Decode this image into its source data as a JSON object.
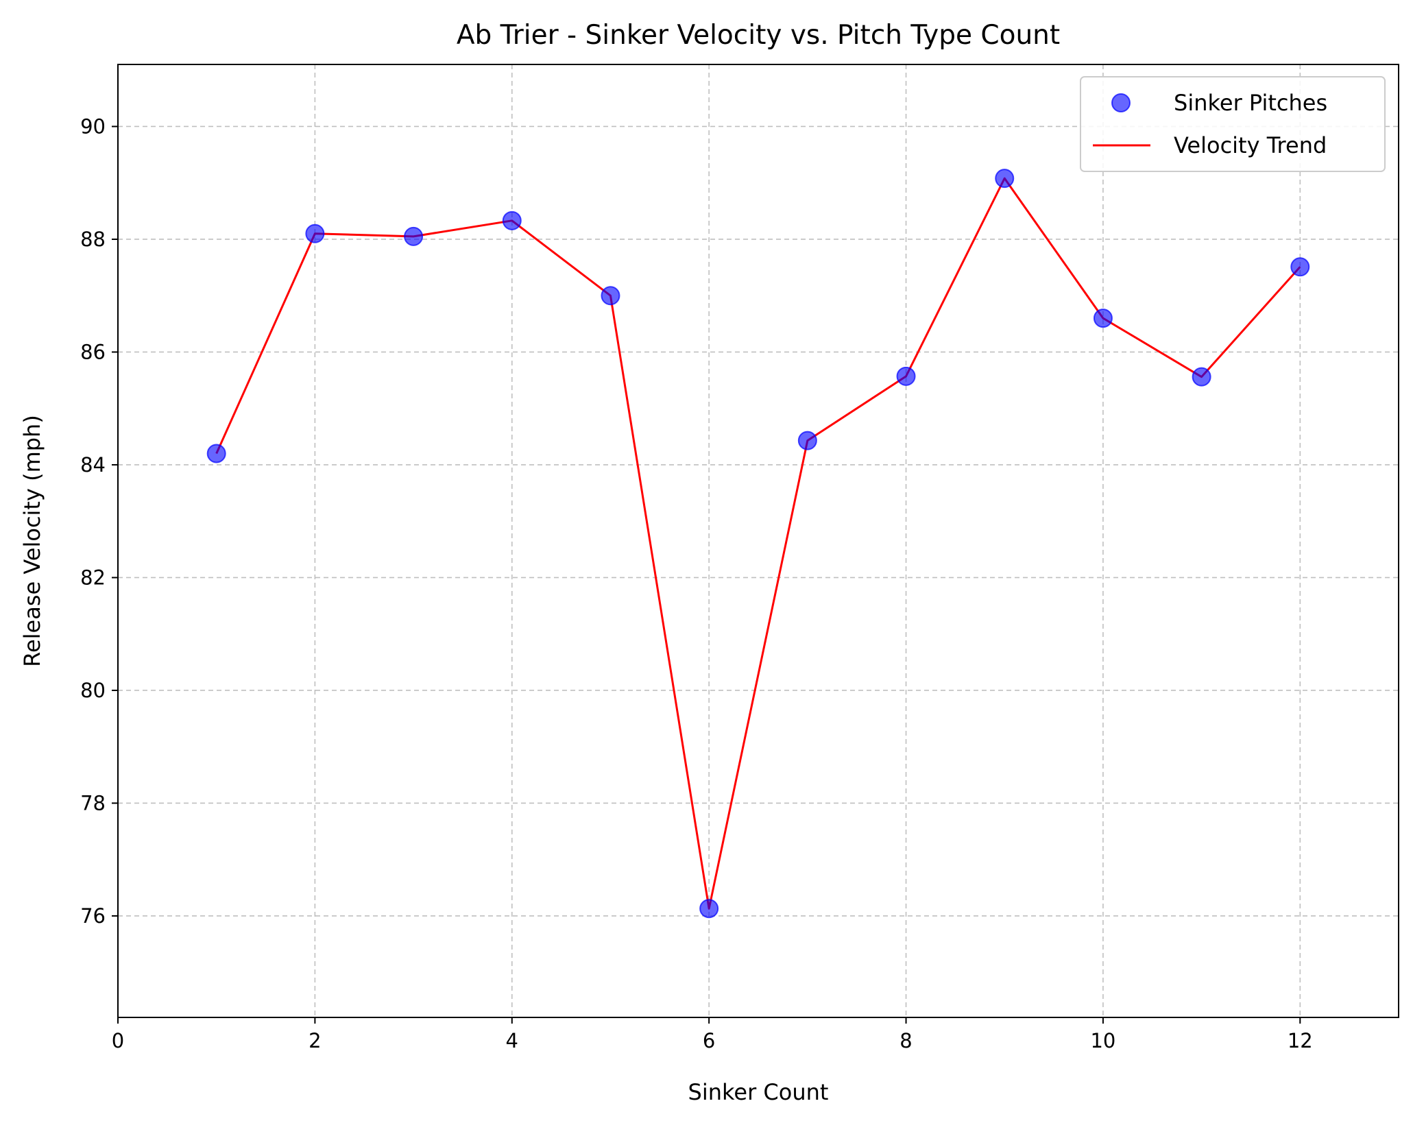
{
  "chart_data": {
    "type": "scatter",
    "title": "Ab Trier - Sinker Velocity vs. Pitch Type Count",
    "xlabel": "Sinker Count",
    "ylabel": "Release Velocity (mph)",
    "xlim": [
      0,
      13
    ],
    "ylim": [
      74.2,
      91.1
    ],
    "xticks": [
      0,
      2,
      4,
      6,
      8,
      10,
      12
    ],
    "yticks": [
      76,
      78,
      80,
      82,
      84,
      86,
      88,
      90
    ],
    "grid": true,
    "legend_position": "upper-right",
    "x": [
      1,
      2,
      3,
      4,
      5,
      6,
      7,
      8,
      9,
      10,
      11,
      12
    ],
    "series": [
      {
        "name": "Sinker Pitches",
        "kind": "scatter",
        "color": "#0000ff",
        "values": [
          84.2,
          88.1,
          88.05,
          88.33,
          87.0,
          76.13,
          84.43,
          85.57,
          89.08,
          86.6,
          85.56,
          87.51
        ]
      },
      {
        "name": "Velocity Trend",
        "kind": "line",
        "color": "#ff0000",
        "values": [
          84.2,
          88.1,
          88.05,
          88.33,
          87.0,
          76.13,
          84.43,
          85.57,
          89.08,
          86.6,
          85.56,
          87.51
        ]
      }
    ]
  }
}
